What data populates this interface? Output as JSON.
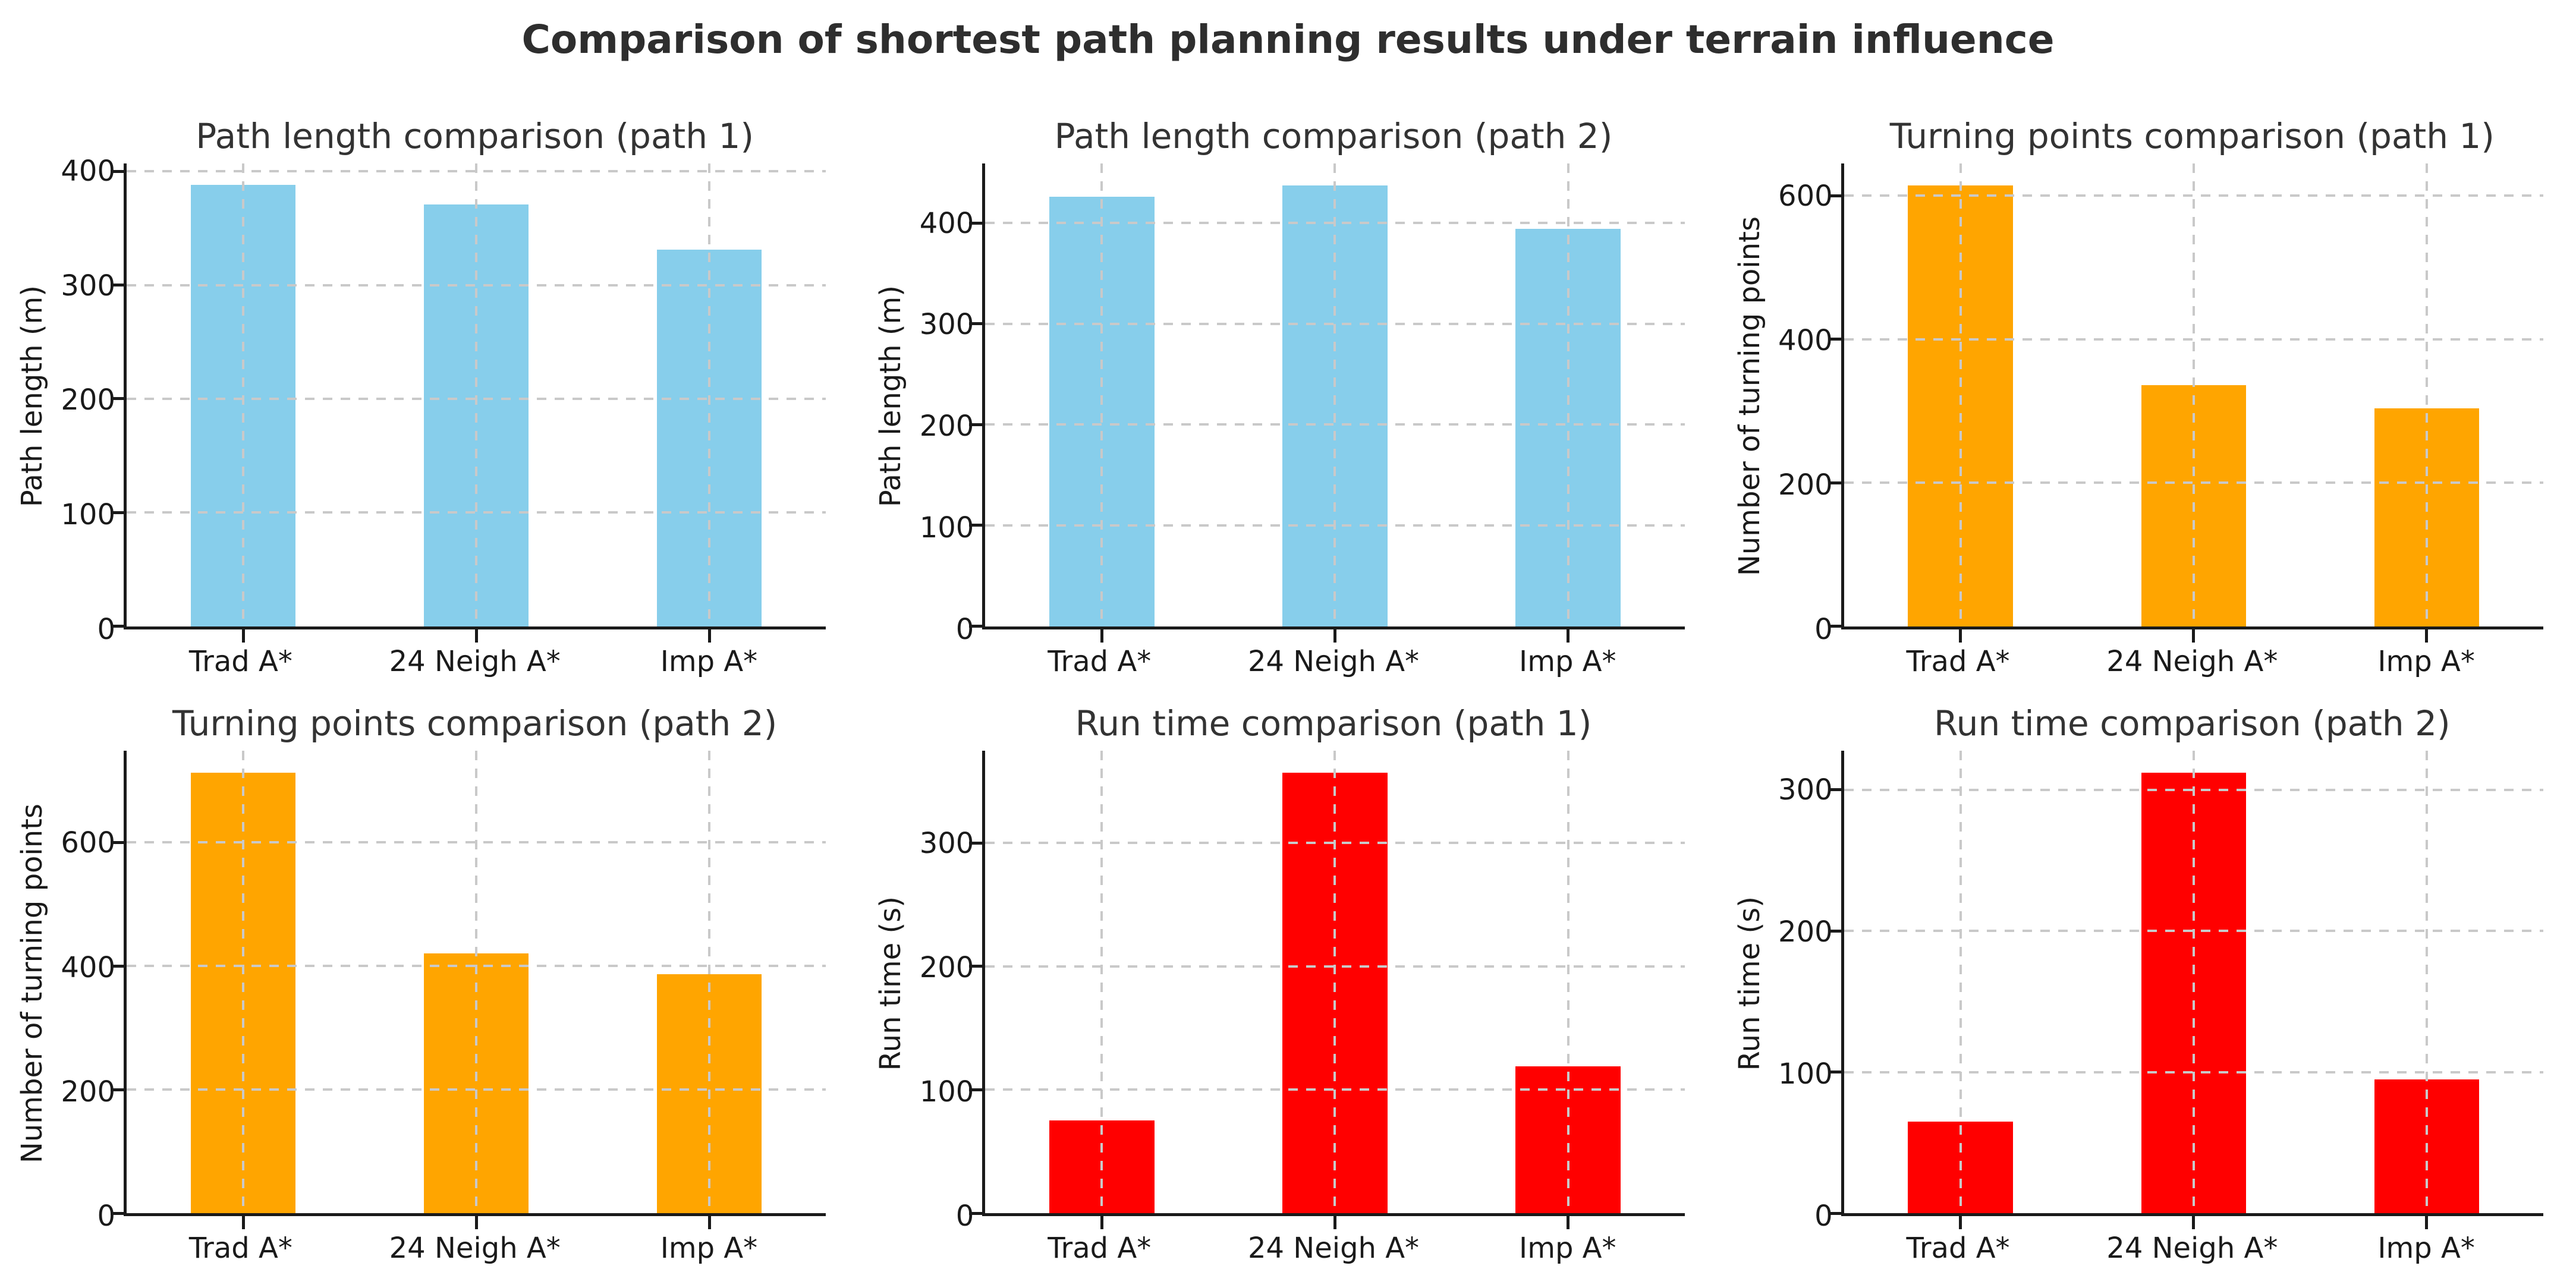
{
  "figure": {
    "suptitle": "Comparison of shortest path planning results under terrain influence",
    "background": "#ffffff",
    "grid_color": "#c9c9c9",
    "axis_color": "#1a1a1a",
    "title_color": "#2e2e2e",
    "subtitle_color": "#333333",
    "rows": 2,
    "cols": 3
  },
  "chart_data": [
    {
      "type": "bar",
      "title": "Path length comparison (path 1)",
      "ylabel": "Path length (m)",
      "xlabel": "",
      "categories": [
        "Trad A*",
        "24 Neigh A*",
        "Imp A*"
      ],
      "values": [
        388,
        371,
        331
      ],
      "yticks": [
        0,
        100,
        200,
        300,
        400
      ],
      "ylim": [
        0,
        407
      ],
      "bar_color": "#87CEEB",
      "grid": true,
      "legend": "none"
    },
    {
      "type": "bar",
      "title": "Path length comparison (path 2)",
      "ylabel": "Path length (m)",
      "xlabel": "",
      "categories": [
        "Trad A*",
        "24 Neigh A*",
        "Imp A*"
      ],
      "values": [
        426,
        437,
        394
      ],
      "yticks": [
        0,
        100,
        200,
        300,
        400
      ],
      "ylim": [
        0,
        459
      ],
      "bar_color": "#87CEEB",
      "grid": true,
      "legend": "none"
    },
    {
      "type": "bar",
      "title": "Turning points comparison (path 1)",
      "ylabel": "Number of turning points",
      "xlabel": "",
      "categories": [
        "Trad A*",
        "24 Neigh A*",
        "Imp A*"
      ],
      "values": [
        614,
        336,
        304
      ],
      "yticks": [
        0,
        200,
        400,
        600
      ],
      "ylim": [
        0,
        645
      ],
      "bar_color": "#FFA500",
      "grid": true,
      "legend": "none"
    },
    {
      "type": "bar",
      "title": "Turning points comparison (path 2)",
      "ylabel": "Number of turning points",
      "xlabel": "",
      "categories": [
        "Trad A*",
        "24 Neigh A*",
        "Imp A*"
      ],
      "values": [
        713,
        420,
        387
      ],
      "yticks": [
        0,
        200,
        400,
        600
      ],
      "ylim": [
        0,
        749
      ],
      "bar_color": "#FFA500",
      "grid": true,
      "legend": "none"
    },
    {
      "type": "bar",
      "title": "Run time comparison (path 1)",
      "ylabel": "Run time (s)",
      "xlabel": "",
      "categories": [
        "Trad A*",
        "24 Neigh A*",
        "Imp A*"
      ],
      "values": [
        75,
        357,
        119
      ],
      "yticks": [
        0,
        100,
        200,
        300
      ],
      "ylim": [
        0,
        375
      ],
      "bar_color": "#FF0000",
      "grid": true,
      "legend": "none"
    },
    {
      "type": "bar",
      "title": "Run time comparison (path 2)",
      "ylabel": "Run time (s)",
      "xlabel": "",
      "categories": [
        "Trad A*",
        "24 Neigh A*",
        "Imp A*"
      ],
      "values": [
        65,
        312,
        95
      ],
      "yticks": [
        0,
        100,
        200,
        300
      ],
      "ylim": [
        0,
        328
      ],
      "bar_color": "#FF0000",
      "grid": true,
      "legend": "none"
    }
  ]
}
